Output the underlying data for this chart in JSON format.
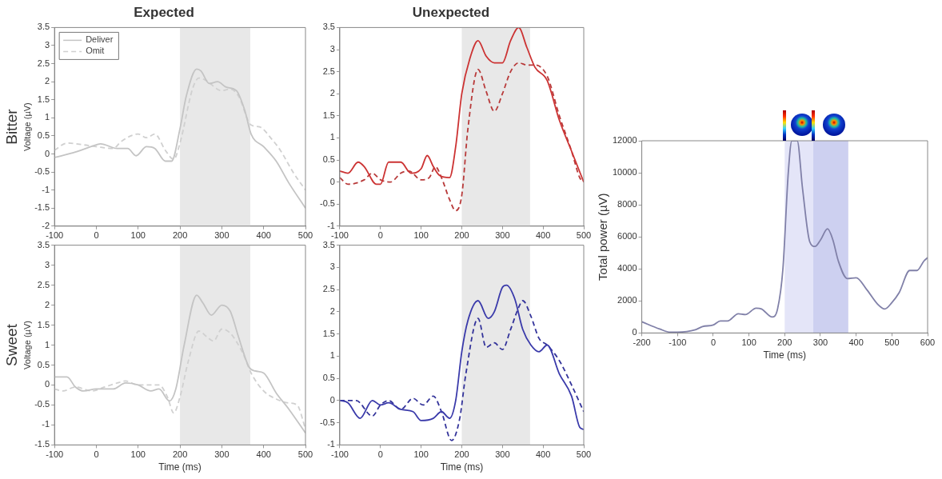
{
  "chart_data": [
    {
      "type": "line",
      "title": "Expected",
      "ylabel": "Voltage (µV)",
      "annotations": [
        "Bitter"
      ],
      "legend": "top left",
      "xlim": [
        -100,
        500
      ],
      "xticks": [
        -100,
        0,
        100,
        200,
        300,
        400,
        500
      ],
      "ylim": [
        -2,
        3.5
      ],
      "yticks": [
        -2,
        -1.5,
        -1,
        -0.5,
        0,
        0.5,
        1,
        1.5,
        2,
        2.5,
        3,
        3.5
      ],
      "bands": [
        {
          "axis": "x",
          "from": 200,
          "to": 368,
          "color": "#e8e8e8"
        }
      ],
      "series": [
        {
          "name": "Deliver",
          "color": "#c4c4c4",
          "line_style": "solid",
          "x": [
            -100,
            -50,
            0,
            10,
            50,
            75,
            95,
            120,
            140,
            165,
            180,
            200,
            215,
            240,
            250,
            270,
            290,
            310,
            335,
            355,
            370,
            400,
            430,
            460,
            500
          ],
          "values": [
            -0.1,
            0.05,
            0.25,
            0.28,
            0.15,
            0.15,
            -0.05,
            0.2,
            0.15,
            -0.2,
            -0.2,
            0.7,
            1.6,
            2.35,
            2.3,
            1.95,
            2.0,
            1.85,
            1.75,
            1.2,
            0.55,
            0.2,
            -0.2,
            -0.8,
            -1.5
          ]
        },
        {
          "name": "Omit",
          "color": "#d0d0d0",
          "line_style": "dashed",
          "x": [
            -100,
            -70,
            -30,
            0,
            40,
            60,
            100,
            120,
            140,
            165,
            185,
            200,
            230,
            245,
            260,
            300,
            320,
            340,
            370,
            390,
            420,
            440,
            470,
            500
          ],
          "values": [
            0.1,
            0.3,
            0.25,
            0.2,
            0.15,
            0.35,
            0.55,
            0.45,
            0.55,
            0.1,
            -0.15,
            0.3,
            1.8,
            2.1,
            2.05,
            1.75,
            1.8,
            1.6,
            0.8,
            0.75,
            0.4,
            0.1,
            -0.5,
            -1.0
          ]
        }
      ]
    },
    {
      "type": "line",
      "title": "Unexpected",
      "xlim": [
        -100,
        500
      ],
      "xticks": [
        -100,
        0,
        100,
        200,
        300,
        400,
        500
      ],
      "ylim": [
        -1,
        3.5
      ],
      "yticks": [
        -1,
        -0.5,
        0,
        0.5,
        1,
        1.5,
        2,
        2.5,
        3,
        3.5
      ],
      "bands": [
        {
          "axis": "x",
          "from": 200,
          "to": 368,
          "color": "#e8e8e8"
        }
      ],
      "series": [
        {
          "color": "#cc3333",
          "line_style": "solid",
          "x": [
            -100,
            -80,
            -55,
            -40,
            -10,
            0,
            20,
            50,
            75,
            100,
            115,
            130,
            145,
            170,
            185,
            200,
            220,
            240,
            260,
            280,
            300,
            320,
            340,
            360,
            380,
            410,
            440,
            470,
            500
          ],
          "values": [
            0.25,
            0.2,
            0.45,
            0.35,
            -0.05,
            -0.05,
            0.45,
            0.45,
            0.2,
            0.3,
            0.6,
            0.35,
            0.15,
            0.1,
            0.8,
            2.0,
            2.8,
            3.2,
            2.85,
            2.7,
            2.7,
            3.2,
            3.5,
            3.05,
            2.6,
            2.3,
            1.4,
            0.7,
            0.0
          ]
        },
        {
          "color": "#b83a3a",
          "line_style": "dashed",
          "x": [
            -100,
            -80,
            -40,
            -20,
            0,
            25,
            50,
            70,
            100,
            120,
            135,
            150,
            170,
            185,
            200,
            215,
            240,
            260,
            280,
            300,
            320,
            340,
            360,
            380,
            410,
            440,
            470,
            490,
            500
          ],
          "values": [
            0.1,
            -0.05,
            0.05,
            0.2,
            0.05,
            0.0,
            0.2,
            0.25,
            0.05,
            0.1,
            0.35,
            0.1,
            -0.4,
            -0.65,
            -0.3,
            1.2,
            2.55,
            2.05,
            1.6,
            2.0,
            2.5,
            2.7,
            2.65,
            2.65,
            2.4,
            1.5,
            0.7,
            0.1,
            0.0
          ]
        }
      ]
    },
    {
      "type": "line",
      "xlabel": "Time (ms)",
      "ylabel": "Voltage (µV)",
      "annotations": [
        "Sweet"
      ],
      "xlim": [
        -100,
        500
      ],
      "xticks": [
        -100,
        0,
        100,
        200,
        300,
        400,
        500
      ],
      "ylim": [
        -1.5,
        3.5
      ],
      "yticks": [
        -1.5,
        -1,
        -0.5,
        0,
        0.5,
        1,
        1.5,
        2,
        2.5,
        3,
        3.5
      ],
      "bands": [
        {
          "axis": "x",
          "from": 200,
          "to": 368,
          "color": "#e8e8e8"
        }
      ],
      "series": [
        {
          "color": "#c4c4c4",
          "line_style": "solid",
          "x": [
            -100,
            -70,
            -50,
            -30,
            0,
            40,
            70,
            100,
            130,
            150,
            175,
            190,
            210,
            240,
            255,
            275,
            300,
            320,
            340,
            365,
            380,
            400,
            430,
            460,
            500
          ],
          "values": [
            0.2,
            0.2,
            -0.05,
            -0.15,
            -0.1,
            -0.1,
            0.05,
            0.0,
            -0.15,
            -0.1,
            -0.4,
            -0.1,
            1.0,
            2.25,
            2.05,
            1.75,
            2.0,
            1.85,
            1.2,
            0.45,
            0.35,
            0.3,
            -0.2,
            -0.6,
            -1.2
          ]
        },
        {
          "color": "#d0d0d0",
          "line_style": "dashed",
          "x": [
            -100,
            -80,
            -50,
            -10,
            20,
            50,
            70,
            100,
            150,
            170,
            185,
            200,
            220,
            245,
            265,
            280,
            300,
            320,
            350,
            370,
            400,
            430,
            460,
            480,
            500
          ],
          "values": [
            -0.1,
            -0.15,
            -0.05,
            -0.15,
            -0.05,
            0.05,
            0.1,
            0.0,
            0.0,
            -0.3,
            -0.7,
            -0.3,
            0.6,
            1.35,
            1.2,
            1.1,
            1.4,
            1.3,
            0.8,
            0.3,
            -0.15,
            -0.35,
            -0.45,
            -0.5,
            -1.1
          ]
        }
      ]
    },
    {
      "type": "line",
      "xlabel": "Time (ms)",
      "xlim": [
        -100,
        500
      ],
      "xticks": [
        -100,
        0,
        100,
        200,
        300,
        400,
        500
      ],
      "ylim": [
        -1,
        3.5
      ],
      "yticks": [
        -1,
        -0.5,
        0,
        0.5,
        1,
        1.5,
        2,
        2.5,
        3,
        3.5
      ],
      "bands": [
        {
          "axis": "x",
          "from": 200,
          "to": 368,
          "color": "#e8e8e8"
        }
      ],
      "series": [
        {
          "color": "#3a3aaa",
          "line_style": "solid",
          "x": [
            -100,
            -80,
            -50,
            -20,
            0,
            20,
            50,
            80,
            100,
            130,
            150,
            170,
            185,
            200,
            215,
            240,
            265,
            280,
            300,
            310,
            330,
            350,
            370,
            390,
            410,
            440,
            470,
            490,
            500
          ],
          "values": [
            0.0,
            -0.05,
            -0.4,
            0.0,
            -0.1,
            -0.05,
            -0.2,
            -0.25,
            -0.45,
            -0.4,
            -0.25,
            -0.4,
            0.0,
            1.1,
            1.8,
            2.25,
            1.85,
            2.0,
            2.55,
            2.6,
            2.3,
            1.6,
            1.25,
            1.1,
            1.25,
            0.6,
            0.1,
            -0.6,
            -0.65
          ]
        },
        {
          "color": "#33339a",
          "line_style": "dashed",
          "x": [
            -100,
            -60,
            -20,
            0,
            20,
            50,
            80,
            105,
            130,
            150,
            175,
            195,
            210,
            240,
            260,
            280,
            300,
            320,
            340,
            350,
            370,
            390,
            410,
            440,
            470,
            500
          ],
          "values": [
            0.0,
            0.0,
            -0.35,
            -0.1,
            0.0,
            -0.2,
            0.05,
            -0.1,
            0.1,
            -0.25,
            -0.9,
            -0.4,
            0.6,
            1.85,
            1.2,
            1.3,
            1.15,
            1.6,
            2.1,
            2.25,
            1.9,
            1.4,
            1.25,
            0.9,
            0.35,
            -0.25
          ]
        }
      ]
    },
    {
      "type": "line",
      "xlabel": "Time (ms)",
      "ylabel": "Total power (µV)",
      "xlim": [
        -200,
        600
      ],
      "xticks": [
        -200,
        -100,
        0,
        100,
        200,
        300,
        400,
        500,
        600
      ],
      "ylim": [
        0,
        12000
      ],
      "yticks": [
        0,
        2000,
        4000,
        6000,
        8000,
        10000,
        12000
      ],
      "bands": [
        {
          "axis": "x",
          "from": 200,
          "to": 280,
          "color": "#e4e5f8"
        },
        {
          "axis": "x",
          "from": 280,
          "to": 378,
          "color": "#cdd0f0"
        }
      ],
      "series": [
        {
          "color": "#8080a8",
          "line_style": "solid",
          "x": [
            -200,
            -150,
            -120,
            -100,
            -50,
            -30,
            0,
            20,
            40,
            70,
            90,
            120,
            135,
            165,
            180,
            195,
            210,
            220,
            235,
            250,
            270,
            285,
            300,
            320,
            335,
            350,
            375,
            400,
            430,
            460,
            480,
            500,
            520,
            550,
            570,
            590,
            600
          ],
          "values": [
            700,
            250,
            50,
            50,
            200,
            400,
            500,
            750,
            750,
            1200,
            1150,
            1550,
            1500,
            1000,
            1500,
            4000,
            10000,
            12000,
            12000,
            9000,
            5700,
            5400,
            5800,
            6500,
            5800,
            4500,
            3400,
            3450,
            2700,
            1800,
            1500,
            1900,
            2500,
            3900,
            3900,
            4500,
            4700
          ]
        }
      ]
    }
  ]
}
